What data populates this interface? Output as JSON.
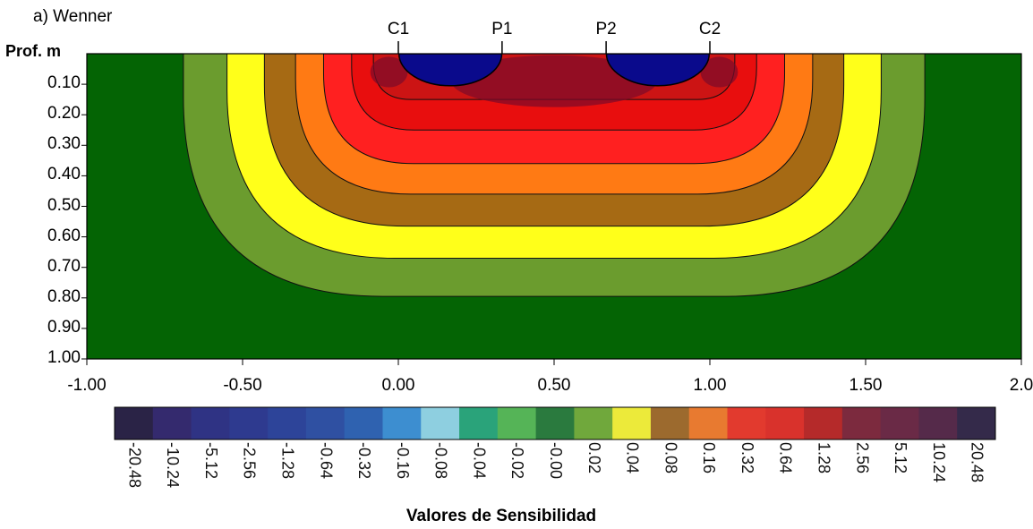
{
  "panel_label": "a) Wenner",
  "chart_data": {
    "type": "heatmap",
    "title": "a) Wenner",
    "ylabel": "Prof. m",
    "xlabel": "",
    "xlim": [
      -1.0,
      2.0
    ],
    "ylim": [
      1.0,
      0.0
    ],
    "xticks": [
      "-1.00",
      "-0.50",
      "0.00",
      "0.50",
      "1.00",
      "1.50",
      "2.0"
    ],
    "yticks": [
      "0.10",
      "0.20",
      "0.30",
      "0.40",
      "0.50",
      "0.60",
      "0.70",
      "0.80",
      "0.90",
      "1.00"
    ],
    "electrodes": [
      {
        "label": "C1",
        "x": 0.0
      },
      {
        "label": "P1",
        "x": 0.333
      },
      {
        "label": "P2",
        "x": 0.667
      },
      {
        "label": "C2",
        "x": 1.0
      }
    ],
    "colorbar": {
      "title": "Valores de Sensibilidad",
      "labels": [
        "-20.48",
        "-10.24",
        "-5.12",
        "-2.56",
        "-1.28",
        "-0.64",
        "-0.32",
        "-0.16",
        "-0.08",
        "-0.04",
        "-0.02",
        "-0.00",
        "0.02",
        "0.04",
        "0.08",
        "0.16",
        "0.32",
        "0.64",
        "1.28",
        "2.56",
        "5.12",
        "10.24",
        "20.48"
      ],
      "colors": [
        "#2a2346",
        "#342a6e",
        "#2f3384",
        "#2e3a8f",
        "#2d4499",
        "#2f50a2",
        "#2f62b0",
        "#3d8ed0",
        "#8ecfe0",
        "#2aa37a",
        "#55b457",
        "#2a7a3e",
        "#70a83c",
        "#ecea3a",
        "#9c6a2e",
        "#e87a30",
        "#e23a2e",
        "#d9322c",
        "#b52a2a",
        "#7c2a3e",
        "#6a2a46",
        "#552a4a",
        "#342a4a"
      ]
    },
    "contours": [
      {
        "level": "0.02",
        "color": "#6b9c2e"
      },
      {
        "level": "0.04",
        "color": "#ffff1a"
      },
      {
        "level": "0.08",
        "color": "#a66a14"
      },
      {
        "level": "0.16",
        "color": "#ff7a14"
      },
      {
        "level": "0.32",
        "color": "#ff2020"
      },
      {
        "level": "0.64",
        "color": "#e80e0e"
      },
      {
        "level": "1.28",
        "color": "#cc1414"
      }
    ],
    "background_color": "#046404",
    "negative_color": "#0a0a8c",
    "positive_peak_color": "#7a0a2a"
  }
}
